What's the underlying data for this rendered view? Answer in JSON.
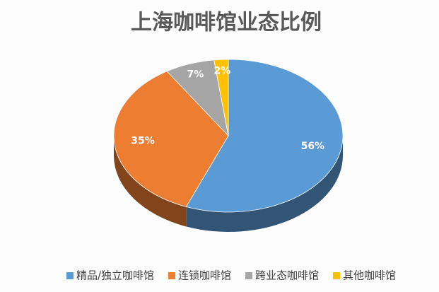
{
  "chart_data": {
    "type": "pie",
    "title": "上海咖啡馆业态比例",
    "categories": [
      "精品/独立咖啡馆",
      "连锁咖啡馆",
      "跨业态咖啡馆",
      "其他咖啡馆"
    ],
    "values": [
      56,
      35,
      7,
      2
    ],
    "value_labels": [
      "56%",
      "35%",
      "7%",
      "2%"
    ],
    "colors": [
      "#5b9bd5",
      "#ed7d31",
      "#a5a5a5",
      "#ffc000"
    ],
    "legend": "bottom"
  }
}
